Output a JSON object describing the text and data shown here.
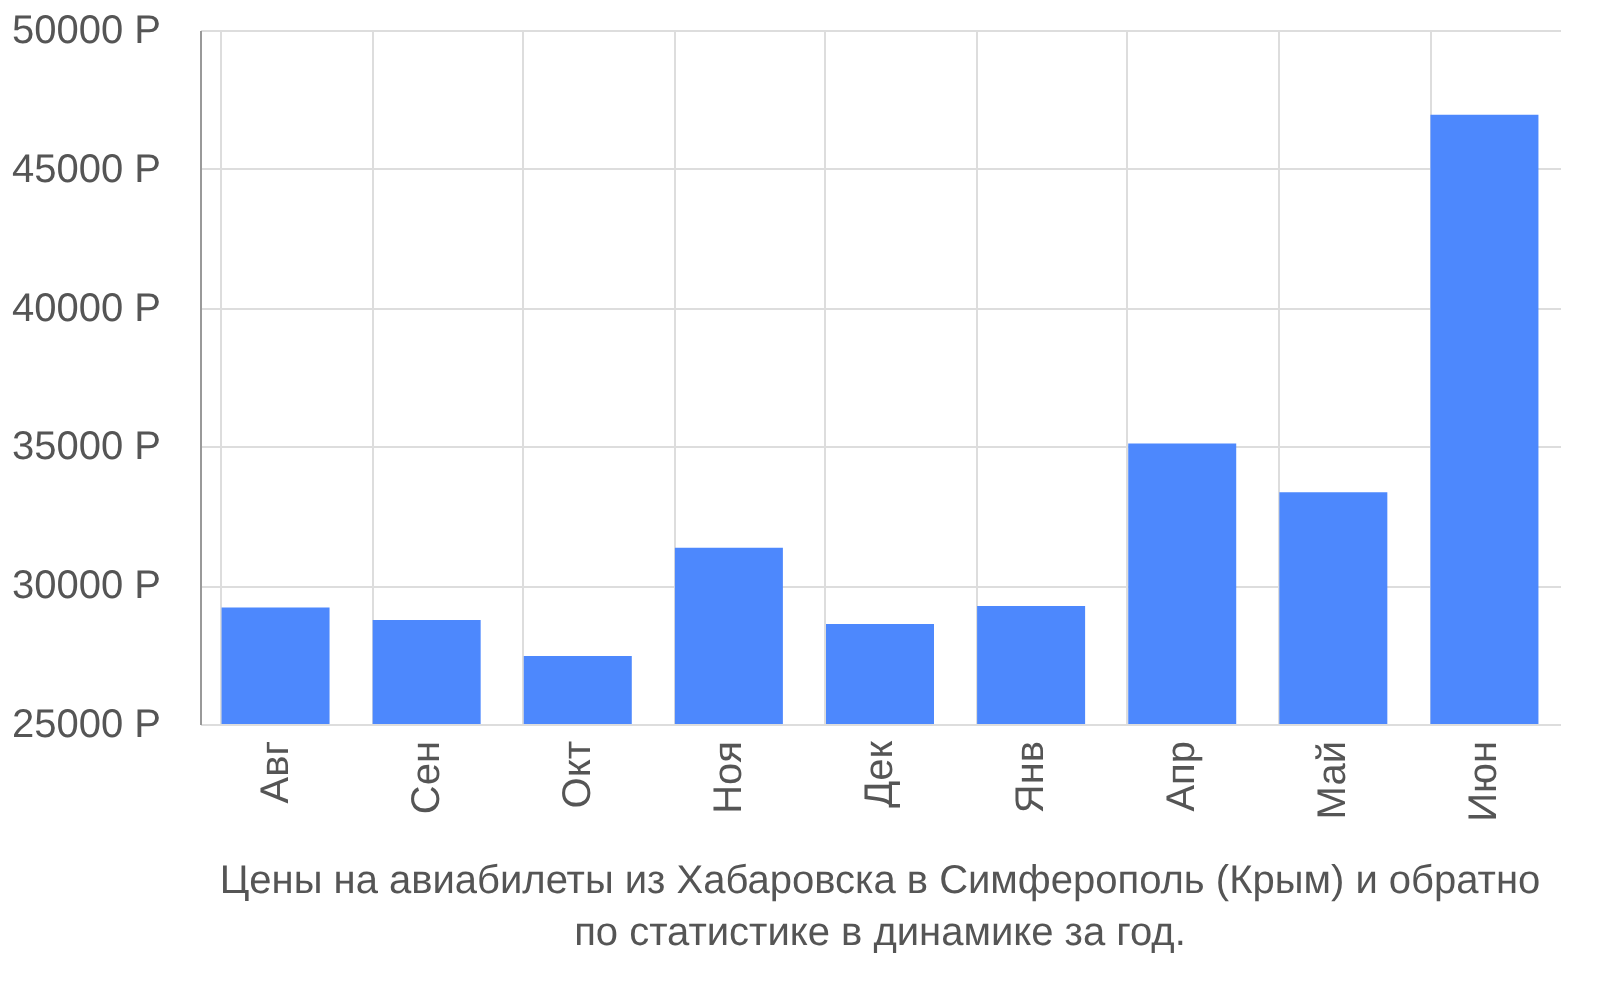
{
  "chart_data": {
    "type": "bar",
    "title": "Цены на авиабилеты из Хабаровска в Симферополь (Крым) и обратно по статистике в динамике за год.",
    "categories": [
      "Авг",
      "Сен",
      "Окт",
      "Ноя",
      "Дек",
      "Янв",
      "Апр",
      "Май",
      "Июн"
    ],
    "series": [
      {
        "color": "#4d88fd",
        "values": [
          29200,
          28750,
          27450,
          31350,
          28600,
          29250,
          35100,
          33350,
          46950
        ]
      }
    ],
    "ylim": [
      25000,
      50000
    ],
    "yticks": [
      {
        "value": 25000,
        "label": "25000 Р"
      },
      {
        "value": 30000,
        "label": "30000 Р"
      },
      {
        "value": 35000,
        "label": "35000 Р"
      },
      {
        "value": 40000,
        "label": "40000 Р"
      },
      {
        "value": 45000,
        "label": "45000 Р"
      },
      {
        "value": 50000,
        "label": "50000 Р"
      }
    ],
    "grid": true,
    "legend": false
  }
}
